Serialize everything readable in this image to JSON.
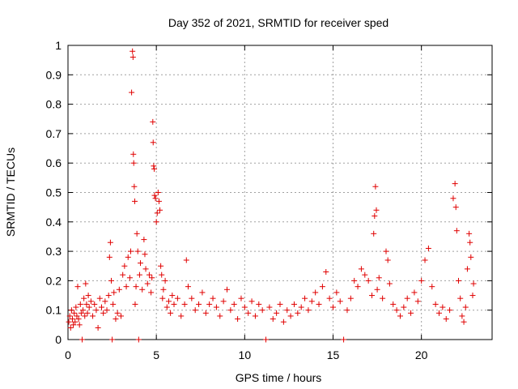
{
  "chart_data": {
    "type": "scatter",
    "title": "Day 352 of 2021, SRMTID for receiver sped",
    "xlabel": "GPS time / hours",
    "ylabel": "SRMTID / TECUs",
    "xlim": [
      0,
      24
    ],
    "ylim": [
      0,
      1
    ],
    "x_ticks": [
      0,
      5,
      10,
      15,
      20
    ],
    "y_ticks": [
      0,
      0.1,
      0.2,
      0.3,
      0.4,
      0.5,
      0.6,
      0.7,
      0.8,
      0.9,
      1
    ],
    "x_tick_labels": [
      "0",
      "5",
      "10",
      "15",
      "20"
    ],
    "y_tick_labels": [
      "0",
      "0.1",
      "0.2",
      "0.3",
      "0.4",
      "0.5",
      "0.6",
      "0.7",
      "0.8",
      "0.9",
      "1"
    ],
    "grid": true,
    "marker": "+",
    "color": "#e00000",
    "series": [
      {
        "name": "SRMTID",
        "points": [
          [
            0.05,
            0.06
          ],
          [
            0.1,
            0.08
          ],
          [
            0.15,
            0.04
          ],
          [
            0.2,
            0.1
          ],
          [
            0.25,
            0.07
          ],
          [
            0.3,
            0.05
          ],
          [
            0.35,
            0.09
          ],
          [
            0.4,
            0.06
          ],
          [
            0.45,
            0.11
          ],
          [
            0.5,
            0.08
          ],
          [
            0.55,
            0.18
          ],
          [
            0.6,
            0.07
          ],
          [
            0.65,
            0.05
          ],
          [
            0.7,
            0.12
          ],
          [
            0.75,
            0.09
          ],
          [
            0.8,
            0.0
          ],
          [
            0.85,
            0.1
          ],
          [
            0.9,
            0.14
          ],
          [
            0.95,
            0.08
          ],
          [
            1.0,
            0.19
          ],
          [
            1.05,
            0.12
          ],
          [
            1.1,
            0.09
          ],
          [
            1.15,
            0.15
          ],
          [
            1.2,
            0.11
          ],
          [
            1.3,
            0.13
          ],
          [
            1.4,
            0.08
          ],
          [
            1.5,
            0.12
          ],
          [
            1.6,
            0.1
          ],
          [
            1.7,
            0.04
          ],
          [
            1.8,
            0.14
          ],
          [
            1.9,
            0.11
          ],
          [
            2.0,
            0.09
          ],
          [
            2.1,
            0.13
          ],
          [
            2.2,
            0.1
          ],
          [
            2.3,
            0.15
          ],
          [
            2.35,
            0.28
          ],
          [
            2.4,
            0.33
          ],
          [
            2.45,
            0.2
          ],
          [
            2.5,
            0.0
          ],
          [
            2.55,
            0.12
          ],
          [
            2.6,
            0.16
          ],
          [
            2.7,
            0.07
          ],
          [
            2.8,
            0.09
          ],
          [
            2.9,
            0.17
          ],
          [
            3.0,
            0.08
          ],
          [
            3.1,
            0.22
          ],
          [
            3.2,
            0.25
          ],
          [
            3.3,
            0.18
          ],
          [
            3.4,
            0.28
          ],
          [
            3.5,
            0.21
          ],
          [
            3.55,
            0.3
          ],
          [
            3.6,
            0.84
          ],
          [
            3.65,
            0.98
          ],
          [
            3.68,
            0.96
          ],
          [
            3.7,
            0.63
          ],
          [
            3.72,
            0.6
          ],
          [
            3.75,
            0.52
          ],
          [
            3.78,
            0.47
          ],
          [
            3.8,
            0.12
          ],
          [
            3.85,
            0.18
          ],
          [
            3.9,
            0.36
          ],
          [
            3.95,
            0.3
          ],
          [
            4.0,
            0.0
          ],
          [
            4.05,
            0.22
          ],
          [
            4.1,
            0.26
          ],
          [
            4.2,
            0.17
          ],
          [
            4.3,
            0.34
          ],
          [
            4.35,
            0.29
          ],
          [
            4.4,
            0.24
          ],
          [
            4.5,
            0.19
          ],
          [
            4.6,
            0.22
          ],
          [
            4.7,
            0.16
          ],
          [
            4.75,
            0.21
          ],
          [
            4.8,
            0.74
          ],
          [
            4.82,
            0.67
          ],
          [
            4.85,
            0.59
          ],
          [
            4.88,
            0.58
          ],
          [
            4.9,
            0.49
          ],
          [
            4.95,
            0.48
          ],
          [
            5.0,
            0.4
          ],
          [
            5.05,
            0.43
          ],
          [
            5.1,
            0.5
          ],
          [
            5.15,
            0.47
          ],
          [
            5.2,
            0.44
          ],
          [
            5.25,
            0.25
          ],
          [
            5.3,
            0.22
          ],
          [
            5.35,
            0.14
          ],
          [
            5.4,
            0.17
          ],
          [
            5.5,
            0.2
          ],
          [
            5.6,
            0.11
          ],
          [
            5.7,
            0.13
          ],
          [
            5.8,
            0.09
          ],
          [
            5.9,
            0.15
          ],
          [
            6.0,
            0.12
          ],
          [
            6.2,
            0.14
          ],
          [
            6.4,
            0.08
          ],
          [
            6.6,
            0.12
          ],
          [
            6.7,
            0.27
          ],
          [
            6.8,
            0.18
          ],
          [
            7.0,
            0.14
          ],
          [
            7.2,
            0.1
          ],
          [
            7.4,
            0.12
          ],
          [
            7.6,
            0.16
          ],
          [
            7.8,
            0.09
          ],
          [
            8.0,
            0.12
          ],
          [
            8.2,
            0.14
          ],
          [
            8.4,
            0.11
          ],
          [
            8.6,
            0.08
          ],
          [
            8.8,
            0.13
          ],
          [
            9.0,
            0.17
          ],
          [
            9.2,
            0.1
          ],
          [
            9.4,
            0.12
          ],
          [
            9.6,
            0.07
          ],
          [
            9.8,
            0.14
          ],
          [
            10.0,
            0.11
          ],
          [
            10.2,
            0.09
          ],
          [
            10.4,
            0.13
          ],
          [
            10.6,
            0.08
          ],
          [
            10.8,
            0.12
          ],
          [
            11.0,
            0.1
          ],
          [
            11.2,
            0.0
          ],
          [
            11.4,
            0.11
          ],
          [
            11.6,
            0.07
          ],
          [
            11.8,
            0.09
          ],
          [
            12.0,
            0.12
          ],
          [
            12.2,
            0.06
          ],
          [
            12.4,
            0.1
          ],
          [
            12.6,
            0.08
          ],
          [
            12.8,
            0.12
          ],
          [
            13.0,
            0.09
          ],
          [
            13.2,
            0.11
          ],
          [
            13.4,
            0.14
          ],
          [
            13.6,
            0.1
          ],
          [
            13.8,
            0.13
          ],
          [
            14.0,
            0.16
          ],
          [
            14.2,
            0.12
          ],
          [
            14.4,
            0.18
          ],
          [
            14.6,
            0.23
          ],
          [
            14.8,
            0.14
          ],
          [
            15.0,
            0.11
          ],
          [
            15.2,
            0.16
          ],
          [
            15.4,
            0.13
          ],
          [
            15.6,
            0.0
          ],
          [
            15.8,
            0.1
          ],
          [
            16.0,
            0.14
          ],
          [
            16.2,
            0.2
          ],
          [
            16.4,
            0.18
          ],
          [
            16.6,
            0.24
          ],
          [
            16.8,
            0.22
          ],
          [
            17.0,
            0.2
          ],
          [
            17.2,
            0.15
          ],
          [
            17.3,
            0.36
          ],
          [
            17.35,
            0.42
          ],
          [
            17.4,
            0.52
          ],
          [
            17.45,
            0.44
          ],
          [
            17.5,
            0.17
          ],
          [
            17.6,
            0.21
          ],
          [
            17.8,
            0.14
          ],
          [
            18.0,
            0.3
          ],
          [
            18.1,
            0.27
          ],
          [
            18.2,
            0.19
          ],
          [
            18.4,
            0.12
          ],
          [
            18.6,
            0.1
          ],
          [
            18.8,
            0.08
          ],
          [
            19.0,
            0.11
          ],
          [
            19.2,
            0.14
          ],
          [
            19.4,
            0.09
          ],
          [
            19.6,
            0.16
          ],
          [
            19.8,
            0.13
          ],
          [
            20.0,
            0.2
          ],
          [
            20.2,
            0.27
          ],
          [
            20.4,
            0.31
          ],
          [
            20.6,
            0.18
          ],
          [
            20.8,
            0.12
          ],
          [
            21.0,
            0.09
          ],
          [
            21.2,
            0.11
          ],
          [
            21.4,
            0.07
          ],
          [
            21.6,
            0.1
          ],
          [
            21.8,
            0.48
          ],
          [
            21.9,
            0.53
          ],
          [
            21.95,
            0.45
          ],
          [
            22.0,
            0.37
          ],
          [
            22.1,
            0.2
          ],
          [
            22.2,
            0.14
          ],
          [
            22.3,
            0.08
          ],
          [
            22.4,
            0.06
          ],
          [
            22.5,
            0.11
          ],
          [
            22.6,
            0.24
          ],
          [
            22.7,
            0.36
          ],
          [
            22.75,
            0.33
          ],
          [
            22.8,
            0.28
          ],
          [
            22.9,
            0.15
          ],
          [
            22.95,
            0.19
          ]
        ]
      }
    ]
  }
}
